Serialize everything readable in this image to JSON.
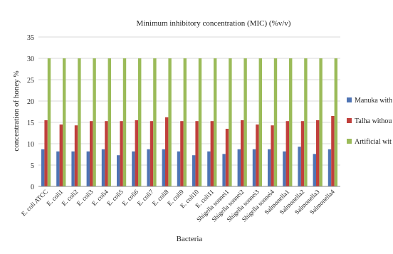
{
  "chart_data": {
    "type": "bar",
    "title": "Minimum inhibitory concentration (MIC) (%v/v)",
    "xlabel": "Bacteria",
    "ylabel": "concentration of honey %",
    "ylim": [
      0,
      35
    ],
    "yticks": [
      0,
      5,
      10,
      15,
      20,
      25,
      30,
      35
    ],
    "grid": true,
    "legend_position": "right",
    "categories": [
      "E. coli ATCC",
      "E. coli1",
      "E. coli2",
      "E. coli3",
      "E. coli4",
      "E. coli5",
      "E. coli6",
      "E. coli7",
      "E. coli8",
      "E. coli9",
      "E. coli10",
      "E. coli11",
      "Shigella sonnei1",
      "Shigella sonnei2",
      "Shigella sonnei3",
      "Shigella sonnei4",
      "Salmonella1",
      "Salmonella2",
      "Salmonella3",
      "Salmonella4"
    ],
    "series": [
      {
        "name": "Manuka with",
        "color": "#4f74b4",
        "values": [
          8.7,
          8.2,
          8.2,
          8.2,
          8.7,
          7.3,
          8.2,
          8.7,
          8.7,
          8.2,
          7.3,
          8.2,
          7.6,
          8.7,
          8.7,
          8.7,
          8.2,
          9.3,
          7.6,
          8.7
        ]
      },
      {
        "name": "Talha withou",
        "color": "#c0403c",
        "values": [
          15.5,
          14.5,
          14.3,
          15.3,
          15.3,
          15.3,
          15.5,
          15.3,
          16.2,
          15.3,
          15.3,
          15.3,
          13.5,
          15.5,
          14.5,
          14.3,
          15.3,
          15.3,
          15.5,
          16.5
        ]
      },
      {
        "name": "Artificial wit",
        "color": "#9bbb59",
        "values": [
          30,
          30,
          30,
          30,
          30,
          30,
          30,
          30,
          30,
          30,
          30,
          30,
          30,
          30,
          30,
          30,
          30,
          30,
          30,
          30
        ]
      }
    ]
  }
}
